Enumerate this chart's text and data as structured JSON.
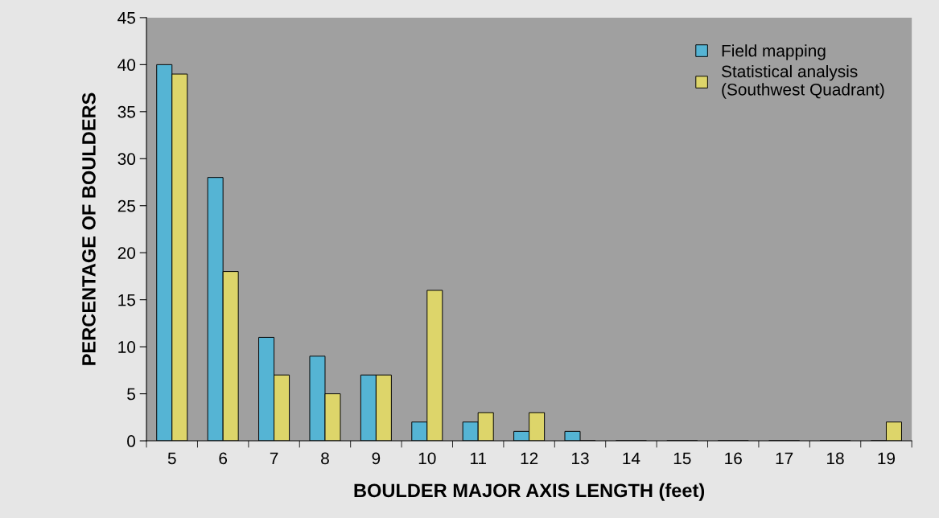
{
  "chart_data": {
    "type": "bar",
    "xlabel": "BOULDER MAJOR AXIS LENGTH (feet)",
    "ylabel": "PERCENTAGE OF BOULDERS",
    "categories": [
      "5",
      "6",
      "7",
      "8",
      "9",
      "10",
      "11",
      "12",
      "13",
      "14",
      "15",
      "16",
      "17",
      "18",
      "19"
    ],
    "series": [
      {
        "name": "Field mapping",
        "color": "#55b4d4",
        "values": [
          40,
          28,
          11,
          9,
          7,
          2,
          2,
          1,
          1,
          0,
          0,
          0,
          0,
          0,
          0
        ]
      },
      {
        "name": "Statistical analysis\n(Southwest Quadrant)",
        "color": "#ddd56a",
        "values": [
          39,
          18,
          7,
          5,
          7,
          16,
          3,
          3,
          0,
          0,
          0,
          0,
          0,
          0,
          2
        ]
      }
    ],
    "ylim": [
      0,
      45
    ],
    "yticks": [
      0,
      5,
      10,
      15,
      20,
      25,
      30,
      35,
      40,
      45
    ],
    "grid": false,
    "legend": "top right"
  }
}
